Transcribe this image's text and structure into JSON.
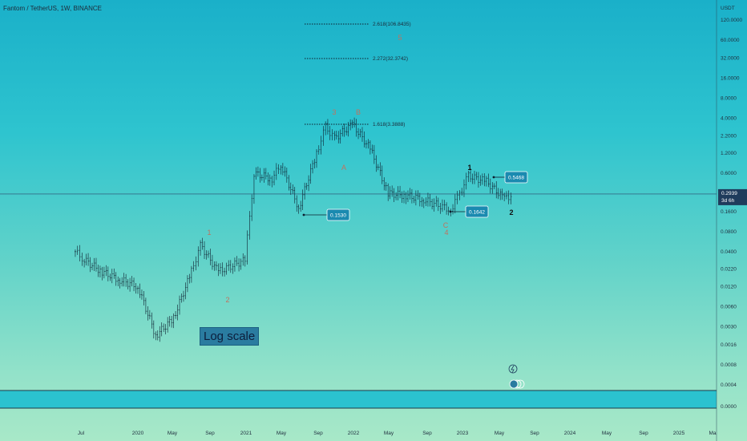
{
  "header": {
    "title": "Fantom / TetherUS, 1W, BINANCE"
  },
  "annotations": {
    "log_scale_label": "Log scale",
    "wave_labels": [
      {
        "id": "w1",
        "text": "1",
        "color": "#c0725e"
      },
      {
        "id": "w2",
        "text": "2",
        "color": "#c0725e"
      },
      {
        "id": "w3a",
        "text": "3",
        "color": "#c0725e"
      },
      {
        "id": "wB",
        "text": "B",
        "color": "#c0725e"
      },
      {
        "id": "wA",
        "text": "A",
        "color": "#c0725e"
      },
      {
        "id": "wC",
        "text": "C",
        "color": "#c0725e"
      },
      {
        "id": "w4",
        "text": "4",
        "color": "#c0725e"
      },
      {
        "id": "w5",
        "text": "5",
        "color": "#c0725e"
      },
      {
        "id": "n1",
        "text": "1",
        "color": "#111111"
      },
      {
        "id": "n2",
        "text": "2",
        "color": "#111111"
      }
    ],
    "fib_levels": [
      {
        "text": "2.618(106.8435)",
        "value": 106.8435
      },
      {
        "text": "2.272(32.3742)",
        "value": 32.3742
      },
      {
        "text": "1.618(3.3888)",
        "value": 3.3888
      }
    ],
    "callouts": [
      {
        "text": "0.1530",
        "value": 0.153
      },
      {
        "text": "0.1642",
        "value": 0.1642
      },
      {
        "text": "0.5468",
        "value": 0.5468
      }
    ]
  },
  "chart_data": {
    "type": "candlestick",
    "symbol": "Fantom / TetherUS",
    "interval": "1W",
    "exchange": "BINANCE",
    "y_scale": "log",
    "currency": "USDT",
    "y_ticks": [
      "120.0000",
      "60.0000",
      "32.0000",
      "16.0000",
      "8.0000",
      "4.0000",
      "2.2000",
      "1.2000",
      "0.6000",
      "0.2939",
      "0.1600",
      "0.0800",
      "0.0400",
      "0.0220",
      "0.0120",
      "0.0060",
      "0.0030",
      "0.0016",
      "0.0008",
      "0.0004",
      "0.0000"
    ],
    "x_ticks": [
      "Jul",
      "2020",
      "May",
      "Sep",
      "2021",
      "May",
      "Sep",
      "2022",
      "May",
      "Sep",
      "2023",
      "May",
      "Sep",
      "2024",
      "May",
      "Sep",
      "2025",
      "Ma"
    ],
    "current_price": "0.2939",
    "countdown": "3d 6h",
    "price_path": [
      {
        "t": "2019-06",
        "close": 0.04
      },
      {
        "t": "2019-07",
        "close": 0.03
      },
      {
        "t": "2019-09",
        "close": 0.02
      },
      {
        "t": "2019-11",
        "close": 0.015
      },
      {
        "t": "2020-01",
        "close": 0.012
      },
      {
        "t": "2020-03",
        "close": 0.0022
      },
      {
        "t": "2020-05",
        "close": 0.004
      },
      {
        "t": "2020-07",
        "close": 0.02
      },
      {
        "t": "2020-08",
        "close": 0.05
      },
      {
        "t": "2020-10",
        "close": 0.02
      },
      {
        "t": "2021-01",
        "close": 0.03
      },
      {
        "t": "2021-02",
        "close": 0.6
      },
      {
        "t": "2021-04",
        "close": 0.5
      },
      {
        "t": "2021-05",
        "close": 0.8
      },
      {
        "t": "2021-07",
        "close": 0.18
      },
      {
        "t": "2021-09",
        "close": 1.2
      },
      {
        "t": "2021-10",
        "close": 3.0
      },
      {
        "t": "2021-11",
        "close": 2.0
      },
      {
        "t": "2022-01",
        "close": 3.3
      },
      {
        "t": "2022-03",
        "close": 1.4
      },
      {
        "t": "2022-05",
        "close": 0.3
      },
      {
        "t": "2022-07",
        "close": 0.28
      },
      {
        "t": "2022-09",
        "close": 0.24
      },
      {
        "t": "2022-12",
        "close": 0.17
      },
      {
        "t": "2023-01",
        "close": 0.3
      },
      {
        "t": "2023-02",
        "close": 0.55
      },
      {
        "t": "2023-04",
        "close": 0.45
      },
      {
        "t": "2023-06",
        "close": 0.25
      },
      {
        "t": "2023-07",
        "close": 0.29
      }
    ]
  }
}
